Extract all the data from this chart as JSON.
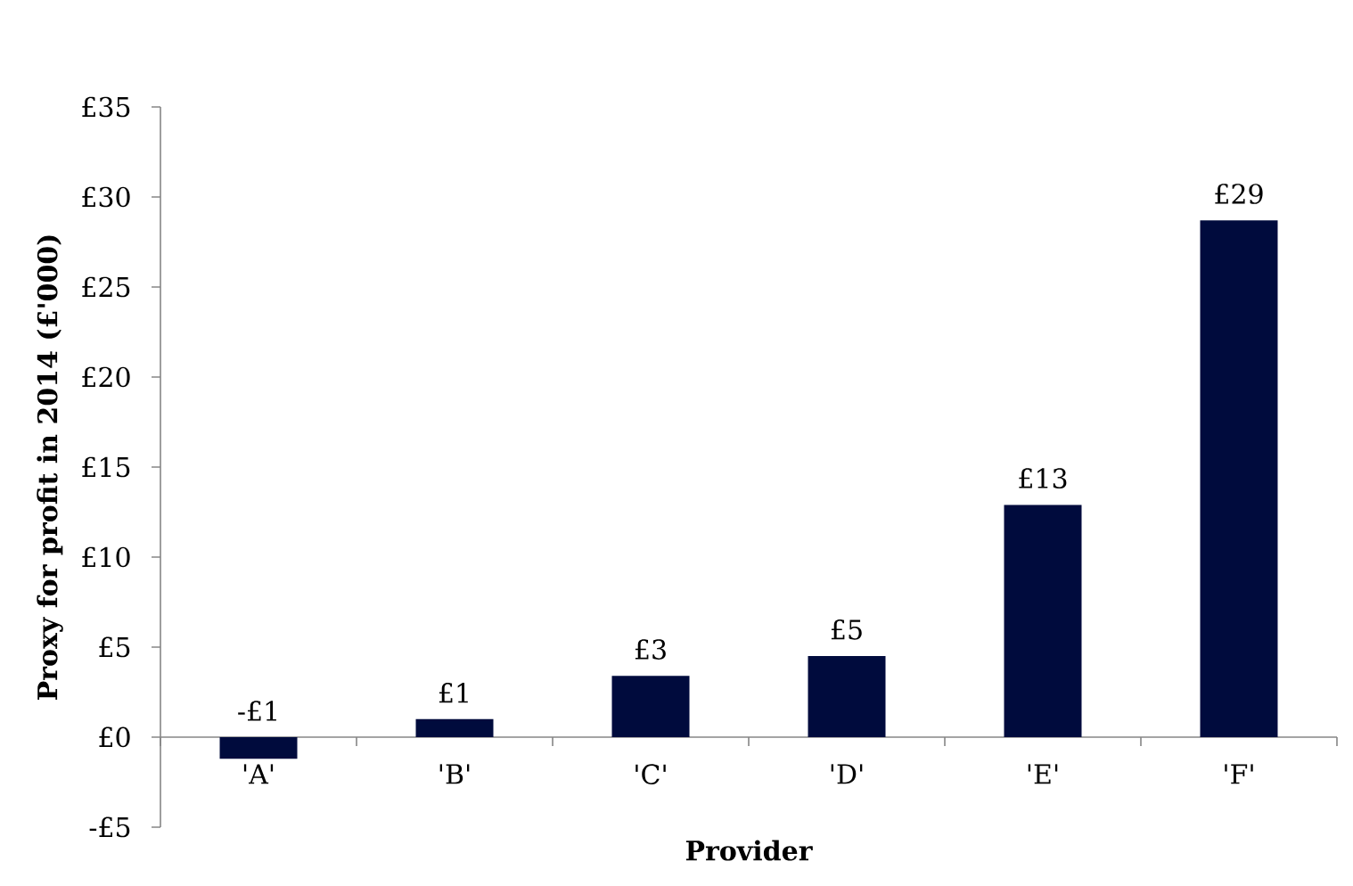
{
  "chart_data": {
    "type": "bar",
    "xlabel": "Provider",
    "ylabel": "Proxy for profit in 2014 (£'000)",
    "categories": [
      "'A'",
      "'B'",
      "'C'",
      "'D'",
      "'E'",
      "'F'"
    ],
    "values": [
      -1.2,
      1.0,
      3.4,
      4.5,
      12.9,
      28.7
    ],
    "value_labels": [
      "-£1",
      "£1",
      "£3",
      "£5",
      "£13",
      "£29"
    ],
    "color": "#000b3d",
    "ylim": [
      -5,
      35
    ],
    "yticks": [
      {
        "value": -5,
        "label": "-£5"
      },
      {
        "value": 0,
        "label": "£0"
      },
      {
        "value": 5,
        "label": "£5"
      },
      {
        "value": 10,
        "label": "£10"
      },
      {
        "value": 15,
        "label": "£15"
      },
      {
        "value": 20,
        "label": "£20"
      },
      {
        "value": 25,
        "label": "£25"
      },
      {
        "value": 30,
        "label": "£30"
      },
      {
        "value": 35,
        "label": "£35"
      }
    ]
  }
}
